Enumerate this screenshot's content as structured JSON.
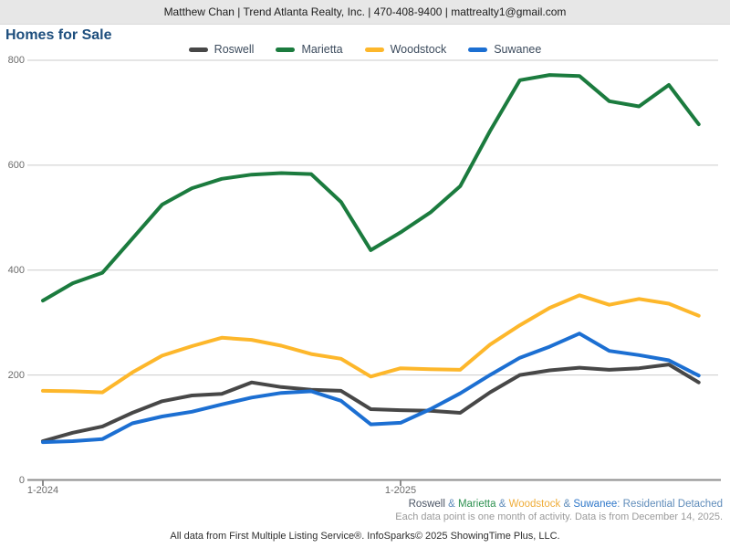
{
  "header": {
    "contact_line": "Matthew Chan | Trend Atlanta Realty, Inc. | 470-408-9400 | mattrealty1@gmail.com"
  },
  "title": "Homes for Sale",
  "y_axis": {
    "tick_labels": [
      "800",
      "600",
      "400",
      "200",
      "0"
    ],
    "tick_values": [
      800,
      600,
      400,
      200,
      0
    ]
  },
  "x_axis": {
    "visible_tick_labels": [
      "1-2024",
      "1-2025"
    ]
  },
  "chart_data": {
    "type": "line",
    "title": "Homes for Sale",
    "x": [
      "1-2024",
      "2-2024",
      "3-2024",
      "4-2024",
      "5-2024",
      "6-2024",
      "7-2024",
      "8-2024",
      "9-2024",
      "10-2024",
      "11-2024",
      "12-2024",
      "1-2025",
      "2-2025",
      "3-2025",
      "4-2025",
      "5-2025",
      "6-2025",
      "7-2025",
      "8-2025",
      "9-2025",
      "10-2025",
      "11-2025"
    ],
    "ylim": [
      0,
      800
    ],
    "grid": "horizontal",
    "legend_position": "top-center",
    "series": [
      {
        "name": "Roswell",
        "color": "#474747",
        "values": [
          74,
          90,
          102,
          128,
          150,
          161,
          164,
          186,
          177,
          172,
          170,
          135,
          133,
          132,
          128,
          167,
          200,
          209,
          214,
          210,
          213,
          220,
          186
        ]
      },
      {
        "name": "Marietta",
        "color": "#1b7b3e",
        "values": [
          342,
          375,
          395,
          460,
          525,
          556,
          574,
          582,
          585,
          583,
          530,
          438,
          472,
          510,
          560,
          665,
          762,
          772,
          770,
          722,
          712,
          753,
          678
        ]
      },
      {
        "name": "Woodstock",
        "color": "#fdb72b",
        "values": [
          170,
          169,
          167,
          205,
          237,
          255,
          271,
          267,
          256,
          240,
          231,
          197,
          213,
          211,
          210,
          258,
          295,
          328,
          352,
          334,
          345,
          336,
          313
        ]
      },
      {
        "name": "Suwanee",
        "color": "#1c6fd2",
        "values": [
          72,
          74,
          78,
          108,
          121,
          130,
          144,
          157,
          166,
          169,
          151,
          106,
          109,
          135,
          165,
          200,
          233,
          254,
          279,
          246,
          238,
          228,
          199
        ]
      }
    ]
  },
  "attribution": {
    "parts": [
      {
        "text": "Roswell",
        "color": "#4a5464"
      },
      {
        "text": " & ",
        "color": "#5f8cba"
      },
      {
        "text": "Marietta",
        "color": "#2e9150"
      },
      {
        "text": " & ",
        "color": "#5f8cba"
      },
      {
        "text": "Woodstock",
        "color": "#efad3a"
      },
      {
        "text": " & ",
        "color": "#5f8cba"
      },
      {
        "text": "Suwanee",
        "color": "#2e77c9"
      },
      {
        "text": ": Residential Detached",
        "color": "#5f8cba"
      }
    ]
  },
  "note": "Each data point is one month of activity. Data is from December 14, 2025.",
  "footer": "All data from First Multiple Listing Service®. InfoSparks© 2025 ShowingTime Plus, LLC."
}
